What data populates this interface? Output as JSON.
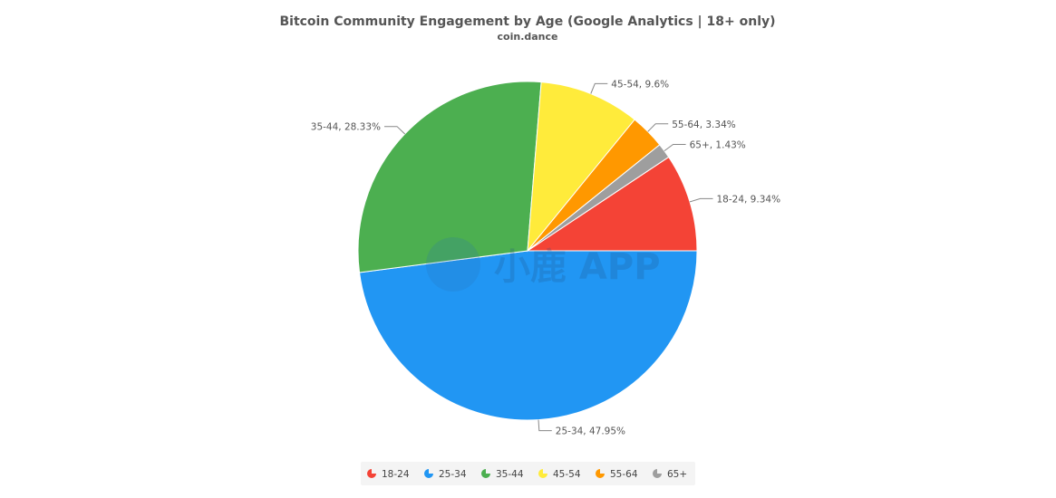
{
  "chart_data": {
    "type": "pie",
    "title": "Bitcoin Community Engagement by Age (Google Analytics | 18+ only)",
    "subtitle": "coin.dance",
    "slices": [
      {
        "label": "18-24",
        "value": 9.34,
        "data_label": "18-24, 9.34%",
        "color": "#f44336"
      },
      {
        "label": "25-34",
        "value": 47.95,
        "data_label": "25-34, 47.95%",
        "color": "#2196f3"
      },
      {
        "label": "35-44",
        "value": 28.33,
        "data_label": "35-44, 28.33%",
        "color": "#4caf50"
      },
      {
        "label": "45-54",
        "value": 9.6,
        "data_label": "45-54, 9.6%",
        "color": "#ffeb3b"
      },
      {
        "label": "55-64",
        "value": 3.34,
        "data_label": "55-64, 3.34%",
        "color": "#ff9800"
      },
      {
        "label": "65+",
        "value": 1.43,
        "data_label": "65+, 1.43%",
        "color": "#9e9e9e"
      }
    ],
    "legend": {
      "position": "bottom-center"
    }
  },
  "watermark": {
    "text": "小鹿 APP",
    "icon": "deer-logo-icon"
  }
}
